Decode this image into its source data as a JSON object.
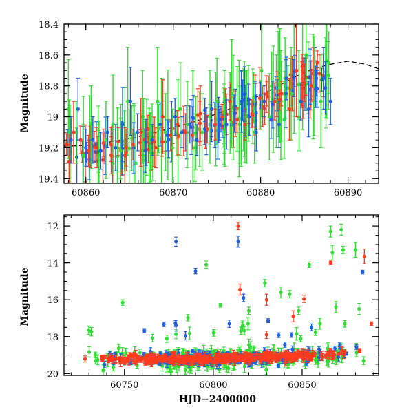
{
  "colors": {
    "green": "#33dd33",
    "blue": "#1f5fe0",
    "red": "#ff3b1f",
    "model": "#000000",
    "axis": "#000000"
  },
  "chart_data": [
    {
      "type": "scatter",
      "title": "",
      "xlabel": "",
      "ylabel": "Magnitude",
      "xlim": [
        60857.5,
        60893.5
      ],
      "ylim": [
        19.43,
        18.4
      ],
      "y_inverted": true,
      "xticks": [
        60860,
        60870,
        60880,
        60890
      ],
      "xticklabels": [
        "60860",
        "60870",
        "60880",
        "60890"
      ],
      "yticks": [
        18.4,
        18.6,
        18.8,
        19,
        19.2,
        19.4
      ],
      "yticklabels": [
        "18.4",
        "18.6",
        "18.8",
        "19",
        "19.2",
        "19.4"
      ],
      "grid": false,
      "legend": "none",
      "model_curve": {
        "name": "",
        "x": [
          60857.5,
          60860,
          60862,
          60864,
          60866,
          60868,
          60870,
          60872,
          60874,
          60876,
          60878,
          60880,
          60882,
          60884,
          60886,
          60888,
          60890,
          60892,
          60893.5
        ],
        "y": [
          19.19,
          19.185,
          19.17,
          19.15,
          19.13,
          19.1,
          19.07,
          19.04,
          19.0,
          18.96,
          18.91,
          18.86,
          18.8,
          18.74,
          18.69,
          18.66,
          18.64,
          18.66,
          18.69
        ]
      },
      "series": [
        {
          "color": "red",
          "x": [
            60857.8,
            60858.6,
            60859.4,
            60860.3,
            60861.2,
            60862.0,
            60862.9,
            60863.7,
            60864.6,
            60865.4,
            60866.3,
            60867.1,
            60868.0,
            60868.8,
            60869.7,
            60870.5,
            60871.4,
            60872.2,
            60873.1,
            60873.9,
            60874.8,
            60875.6,
            60876.5,
            60877.3,
            60878.2,
            60879.0,
            60879.9,
            60880.7,
            60881.6,
            60882.4,
            60883.3,
            60884.1,
            60885.0,
            60885.8,
            60886.7
          ],
          "y": [
            19.18,
            19.1,
            19.15,
            19.22,
            19.2,
            19.17,
            19.25,
            19.16,
            19.2,
            19.18,
            19.1,
            19.08,
            19.2,
            19.0,
            19.12,
            19.05,
            19.1,
            19.12,
            18.98,
            19.08,
            19.05,
            19.0,
            18.9,
            19.02,
            19.05,
            18.98,
            18.88,
            18.85,
            18.9,
            18.85,
            18.95,
            18.7,
            18.78,
            18.8,
            18.72
          ],
          "err": [
            0.07,
            0.2,
            0.09,
            0.1,
            0.13,
            0.09,
            0.12,
            0.09,
            0.12,
            0.1,
            0.22,
            0.09,
            0.13,
            0.24,
            0.1,
            0.09,
            0.12,
            0.09,
            0.18,
            0.09,
            0.1,
            0.08,
            0.12,
            0.08,
            0.1,
            0.09,
            0.2,
            0.08,
            0.12,
            0.08,
            0.2,
            0.3,
            0.12,
            0.1,
            0.12
          ]
        },
        {
          "color": "blue",
          "x": [
            60858.3,
            60859.1,
            60860.0,
            60860.8,
            60861.7,
            60862.5,
            60863.4,
            60864.2,
            60865.1,
            60865.9,
            60866.8,
            60867.6,
            60868.5,
            60869.3,
            60870.2,
            60871.0,
            60871.9,
            60872.7,
            60873.6,
            60874.4,
            60875.3,
            60876.1,
            60877.0,
            60877.8,
            60878.7,
            60879.5,
            60880.4,
            60881.2,
            60882.1,
            60882.9,
            60883.8,
            60884.6,
            60885.5,
            60886.3,
            60887.2,
            60888.0
          ],
          "y": [
            19.15,
            18.95,
            19.2,
            19.15,
            19.22,
            19.1,
            19.2,
            19.05,
            18.9,
            19.1,
            19.22,
            19.15,
            19.05,
            19.12,
            19.0,
            19.1,
            19.05,
            19.15,
            19.08,
            18.95,
            19.05,
            19.05,
            18.98,
            18.9,
            19.0,
            19.1,
            18.9,
            19.02,
            19.05,
            18.85,
            18.75,
            18.9,
            18.95,
            18.82,
            18.75,
            18.9
          ],
          "err": [
            0.15,
            0.2,
            0.12,
            0.15,
            0.12,
            0.1,
            0.15,
            0.24,
            0.22,
            0.12,
            0.14,
            0.1,
            0.14,
            0.1,
            0.12,
            0.1,
            0.12,
            0.1,
            0.1,
            0.18,
            0.1,
            0.16,
            0.12,
            0.2,
            0.12,
            0.12,
            0.1,
            0.12,
            0.15,
            0.22,
            0.12,
            0.12,
            0.18,
            0.12,
            0.2,
            0.15
          ]
        },
        {
          "color": "green",
          "x": [
            60858.0,
            60858.9,
            60859.7,
            60860.6,
            60861.4,
            60862.3,
            60863.1,
            60864.0,
            60864.8,
            60865.7,
            60866.5,
            60867.4,
            60868.2,
            60869.1,
            60869.9,
            60870.8,
            60871.6,
            60872.5,
            60873.3,
            60874.2,
            60875.0,
            60875.9,
            60876.7,
            60877.6,
            60878.4,
            60879.3,
            60880.1,
            60881.0,
            60881.8,
            60882.7,
            60883.5,
            60884.4,
            60885.2,
            60886.1,
            60886.9,
            60887.8
          ],
          "y": [
            18.95,
            19.1,
            19.25,
            19.05,
            19.25,
            19.15,
            19.05,
            19.22,
            18.9,
            19.3,
            19.0,
            19.2,
            18.9,
            19.1,
            19.2,
            18.95,
            19.05,
            19.2,
            19.1,
            19.0,
            18.9,
            19.1,
            18.85,
            19.05,
            19.0,
            19.1,
            18.7,
            19.0,
            18.9,
            19.02,
            18.85,
            19.0,
            18.6,
            18.8,
            18.9,
            18.65
          ],
          "err": [
            0.32,
            0.2,
            0.2,
            0.25,
            0.2,
            0.25,
            0.32,
            0.3,
            0.35,
            0.2,
            0.3,
            0.22,
            0.35,
            0.25,
            0.25,
            0.3,
            0.28,
            0.22,
            0.25,
            0.3,
            0.28,
            0.22,
            0.35,
            0.25,
            0.3,
            0.2,
            0.3,
            0.28,
            0.3,
            0.25,
            0.3,
            0.22,
            0.25,
            0.32,
            0.3,
            0.2
          ]
        }
      ]
    },
    {
      "type": "scatter",
      "title": "",
      "xlabel": "HJD−2400000",
      "ylabel": "Magnitude",
      "xlim": [
        60716,
        60893
      ],
      "ylim": [
        20.1,
        11.4
      ],
      "y_inverted": true,
      "xticks": [
        60750,
        60800,
        60850
      ],
      "xticklabels": [
        "60750",
        "60800",
        "60850"
      ],
      "yticks": [
        12,
        14,
        16,
        18,
        20
      ],
      "yticklabels": [
        "12",
        "14",
        "16",
        "18",
        "20"
      ],
      "grid": false,
      "legend": "none",
      "baseline": {
        "x": [
          60725,
          60760,
          60800,
          60840,
          60870,
          60888
        ],
        "y": [
          19.22,
          19.22,
          19.2,
          19.1,
          18.95,
          18.7
        ]
      },
      "outliers": [
        {
          "color": "blue",
          "x": 60779,
          "y": 12.85,
          "err": 0.25
        },
        {
          "color": "blue",
          "x": 60790,
          "y": 14.45,
          "err": 0.15
        },
        {
          "color": "blue",
          "x": 60814,
          "y": 12.85,
          "err": 0.3
        },
        {
          "color": "blue",
          "x": 60817,
          "y": 15.9,
          "err": 0.2
        },
        {
          "color": "blue",
          "x": 60884,
          "y": 14.5,
          "err": 0.1
        },
        {
          "color": "blue",
          "x": 60779,
          "y": 17.4,
          "err": 0.3
        },
        {
          "color": "blue",
          "x": 60809,
          "y": 17.3,
          "err": 0.2
        },
        {
          "color": "red",
          "x": 60814,
          "y": 12.0,
          "err": 0.2
        },
        {
          "color": "red",
          "x": 60815,
          "y": 15.45,
          "err": 0.3
        },
        {
          "color": "red",
          "x": 60830,
          "y": 16.0,
          "err": 0.3
        },
        {
          "color": "red",
          "x": 60845,
          "y": 16.9,
          "err": 0.3
        },
        {
          "color": "red",
          "x": 60851,
          "y": 15.95,
          "err": 0.2
        },
        {
          "color": "red",
          "x": 60866,
          "y": 14.0,
          "err": 0.1
        },
        {
          "color": "red",
          "x": 60885,
          "y": 13.65,
          "err": 0.4
        },
        {
          "color": "red",
          "x": 60889,
          "y": 17.3,
          "err": 0.1
        },
        {
          "color": "red",
          "x": 60830,
          "y": 17.9,
          "err": 0.2
        },
        {
          "color": "green",
          "x": 60749,
          "y": 16.15,
          "err": 0.15
        },
        {
          "color": "green",
          "x": 60796,
          "y": 14.1,
          "err": 0.2
        },
        {
          "color": "green",
          "x": 60804,
          "y": 16.3,
          "err": 0.1
        },
        {
          "color": "green",
          "x": 60820,
          "y": 16.6,
          "err": 0.2
        },
        {
          "color": "green",
          "x": 60829,
          "y": 15.1,
          "err": 0.2
        },
        {
          "color": "green",
          "x": 60838,
          "y": 15.6,
          "err": 0.3
        },
        {
          "color": "green",
          "x": 60843,
          "y": 15.7,
          "err": 0.2
        },
        {
          "color": "green",
          "x": 60848,
          "y": 16.6,
          "err": 0.2
        },
        {
          "color": "green",
          "x": 60854,
          "y": 14.1,
          "err": 0.15
        },
        {
          "color": "green",
          "x": 60866,
          "y": 12.3,
          "err": 0.3
        },
        {
          "color": "green",
          "x": 60867,
          "y": 13.45,
          "err": 0.4
        },
        {
          "color": "green",
          "x": 60869,
          "y": 16.4,
          "err": 0.3
        },
        {
          "color": "green",
          "x": 60872,
          "y": 12.2,
          "err": 0.3
        },
        {
          "color": "green",
          "x": 60873,
          "y": 13.3,
          "err": 0.2
        },
        {
          "color": "green",
          "x": 60880,
          "y": 13.3,
          "err": 0.4
        },
        {
          "color": "green",
          "x": 60882,
          "y": 16.5,
          "err": 0.3
        },
        {
          "color": "green",
          "x": 60860,
          "y": 17.3,
          "err": 0.3
        }
      ]
    }
  ]
}
